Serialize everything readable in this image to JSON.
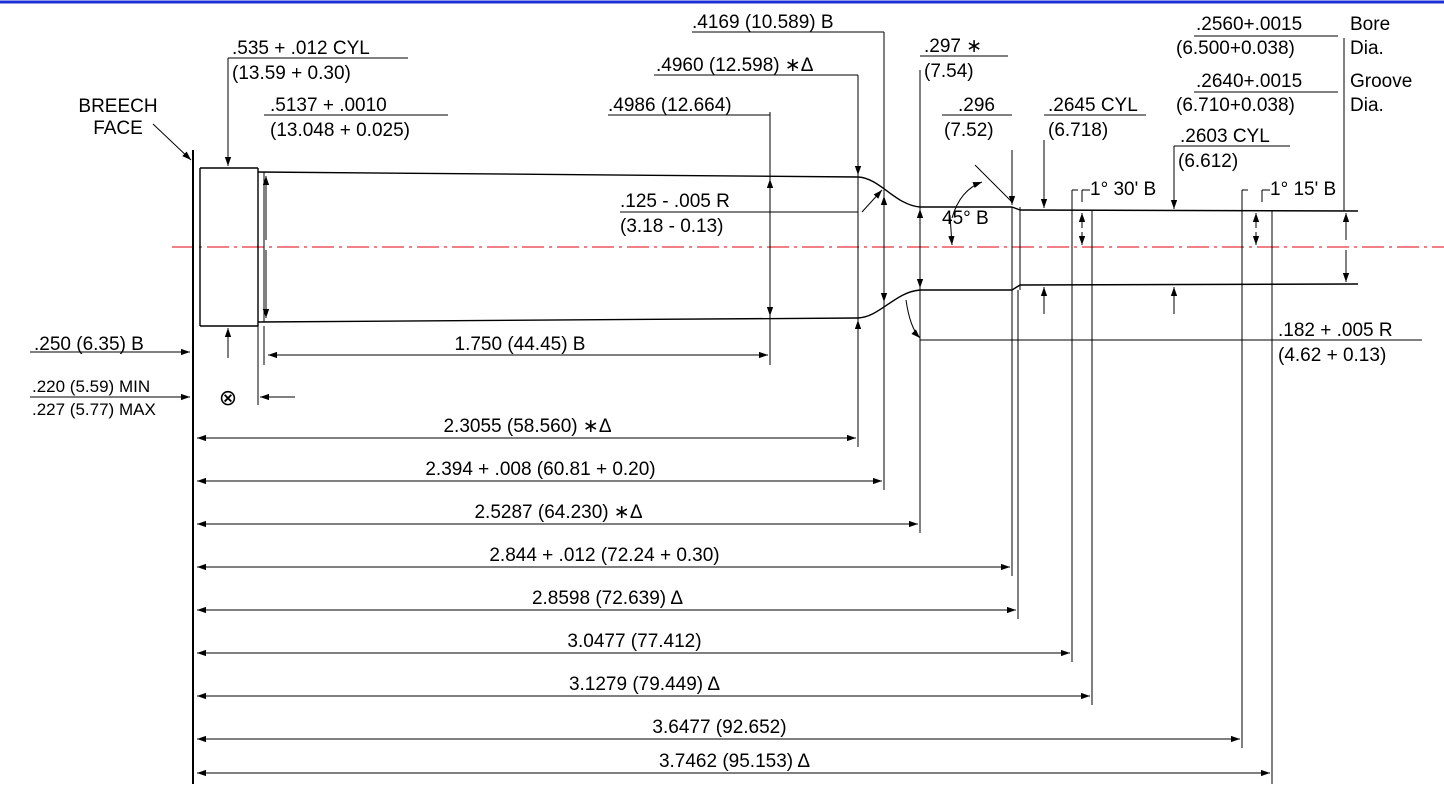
{
  "colors": {
    "frame_blue": "#1f2fd6",
    "centerline_red": "#e8343c",
    "ink": "#000000"
  },
  "labels": {
    "breech_face": [
      "BREECH",
      "FACE"
    ],
    "rim_dia": [
      ".535 + .012 CYL",
      "(13.59 + 0.30)"
    ],
    "base_dia": [
      ".5137 + .0010",
      "(13.048 + 0.025)"
    ],
    "shoulder_start_dia": ".4986 (12.664)",
    "shoulder_dia": ".4960 (12.598)",
    "shoulder_dia_marks": "∗Δ",
    "neck_dia_b": ".4169 (10.589) B",
    "neck_297": ".297",
    "neck_297_mark": "∗",
    "neck_297_mm": "(7.54)",
    "neck_296": ".296",
    "neck_296_mm": "(7.52)",
    "throat_cyl": ".2645 CYL",
    "throat_cyl_mm": "(6.718)",
    "leade_cyl": ".2603 CYL",
    "leade_cyl_mm": "(6.612)",
    "bore": [
      ".2560+.0015",
      "(6.500+0.038)"
    ],
    "bore_word": [
      "Bore",
      "Dia."
    ],
    "groove": [
      ".2640+.0015",
      "(6.710+0.038)"
    ],
    "groove_word": [
      "Groove",
      "Dia."
    ],
    "shoulder_radius": [
      ".125 - .005 R",
      "(3.18 - 0.13)"
    ],
    "shoulder_angle": "45° B",
    "taper_1": "1° 30' B",
    "taper_2": "1° 15' B",
    "neck_radius": [
      ".182 + .005 R",
      "(4.62 + 0.13)"
    ],
    "rim_thick": ".250 (6.35) B",
    "head_space_min": ".220 (5.59) MIN",
    "head_space_max": ".227 (5.77) MAX",
    "body_length": "1.750 (44.45) B",
    "datum_symbol": "⊗"
  },
  "lengths": [
    {
      "text": "2.3055 (58.560)",
      "marks": "∗Δ"
    },
    {
      "text": "2.394 + .008 (60.81 + 0.20)",
      "marks": ""
    },
    {
      "text": "2.5287 (64.230)",
      "marks": "∗Δ"
    },
    {
      "text": "2.844 + .012 (72.24 + 0.30)",
      "marks": ""
    },
    {
      "text": "2.8598 (72.639)",
      "marks": "Δ"
    },
    {
      "text": "3.0477 (77.412)",
      "marks": ""
    },
    {
      "text": "3.1279 (79.449)",
      "marks": "Δ"
    },
    {
      "text": "3.6477 (92.652)",
      "marks": ""
    },
    {
      "text": "3.7462 (95.153)",
      "marks": "Δ"
    }
  ]
}
